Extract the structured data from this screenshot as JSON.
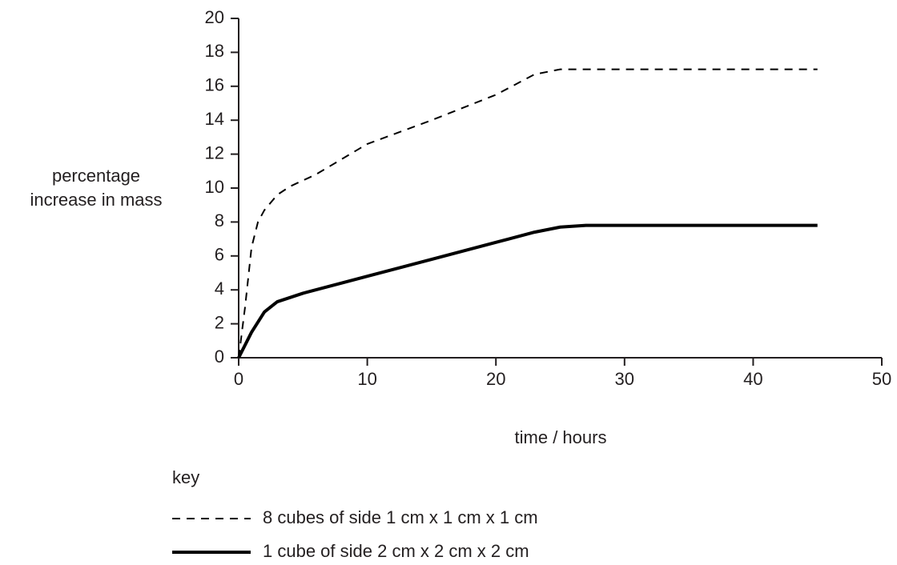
{
  "chart_data": {
    "type": "line",
    "xlabel": "time / hours",
    "ylabel": "percentage increase in mass",
    "xlim": [
      0,
      50
    ],
    "xticks": [
      0,
      10,
      20,
      30,
      40,
      50
    ],
    "ylim": [
      0,
      20
    ],
    "yticks": [
      0,
      2,
      4,
      6,
      8,
      10,
      12,
      14,
      16,
      18,
      20
    ],
    "legend_title": "key",
    "legend": "bottom-left",
    "series": [
      {
        "name": "8 cubes of side 1 cm x 1 cm x 1 cm",
        "color": "#000000",
        "dash": true,
        "x": [
          0,
          0.5,
          1,
          1.5,
          2,
          3,
          4,
          6,
          10,
          15,
          20,
          23,
          25,
          30,
          45
        ],
        "values": [
          0,
          3,
          6.5,
          8,
          8.7,
          9.6,
          10.1,
          10.8,
          12.6,
          14,
          15.5,
          16.7,
          17,
          17,
          17
        ]
      },
      {
        "name": "1 cube of side 2 cm x 2 cm x 2 cm",
        "color": "#000000",
        "dash": false,
        "x": [
          0,
          1,
          2,
          3,
          5,
          8,
          10,
          15,
          20,
          23,
          25,
          27,
          45
        ],
        "values": [
          0,
          1.5,
          2.7,
          3.3,
          3.8,
          4.4,
          4.8,
          5.8,
          6.8,
          7.4,
          7.7,
          7.8,
          7.8
        ]
      }
    ]
  }
}
